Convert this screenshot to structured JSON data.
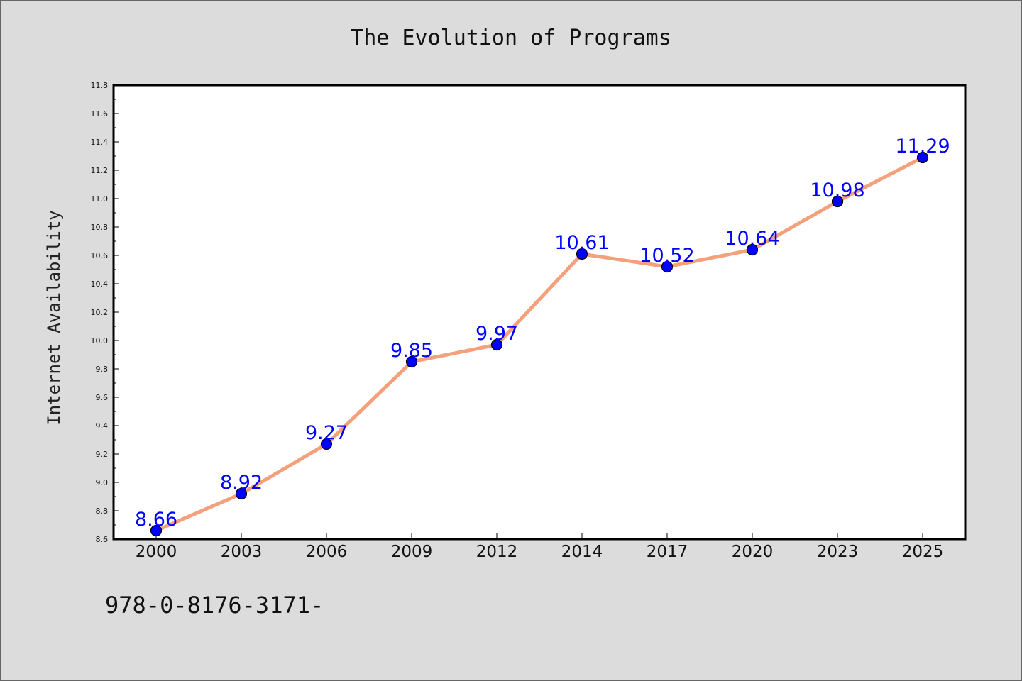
{
  "chart_data": {
    "type": "line",
    "title": "The Evolution of Programs",
    "xlabel": "",
    "ylabel": "Internet Availability",
    "categories": [
      "2000",
      "2003",
      "2006",
      "2009",
      "2012",
      "2014",
      "2017",
      "2020",
      "2023",
      "2025"
    ],
    "series": [
      {
        "values": [
          8.66,
          8.92,
          9.27,
          9.85,
          9.97,
          10.61,
          10.52,
          10.64,
          10.98,
          11.29
        ],
        "data_labels": [
          "8.66",
          "8.92",
          "9.27",
          "9.85",
          "9.97",
          "10.61",
          "10.52",
          "10.64",
          "10.98",
          "11.29"
        ],
        "line_color": "#f4a07a",
        "marker_color": "#0000ff"
      }
    ],
    "ylim": [
      8.6,
      11.8
    ],
    "yticks": [
      "8.6",
      "8.8",
      "9.0",
      "9.2",
      "9.4",
      "9.6",
      "9.8",
      "10.0",
      "10.2",
      "10.4",
      "10.6",
      "10.8",
      "11.0",
      "11.2",
      "11.4",
      "11.6",
      "11.8"
    ],
    "grid": false,
    "legend": "none",
    "background_color": "#dcdcdc",
    "plot_background_color": "#ffffff"
  },
  "footnote": "978-0-8176-3171-"
}
